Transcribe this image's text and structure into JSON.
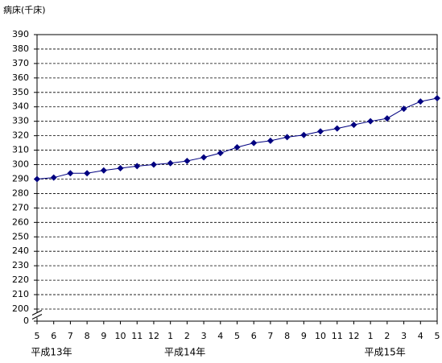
{
  "chart_data": {
    "type": "line",
    "y_axis_title": "病床(千床)",
    "categories": [
      "5",
      "6",
      "7",
      "8",
      "9",
      "10",
      "11",
      "12",
      "1",
      "2",
      "3",
      "4",
      "5",
      "6",
      "7",
      "8",
      "9",
      "10",
      "11",
      "12",
      "1",
      "2",
      "3",
      "4",
      "5"
    ],
    "year_labels": [
      "平成13年",
      null,
      null,
      null,
      null,
      null,
      null,
      null,
      "平成14年",
      null,
      null,
      null,
      null,
      null,
      null,
      null,
      null,
      null,
      null,
      null,
      "平成15年",
      null,
      null,
      null,
      null
    ],
    "series": [
      {
        "color": "#000080",
        "values": [
          290,
          291,
          294,
          294,
          296,
          297.5,
          299,
          300,
          301,
          302.5,
          305,
          308,
          312,
          315,
          316.5,
          319,
          320.5,
          323,
          325,
          327.5,
          330,
          332,
          338.7,
          343.7,
          346
        ]
      }
    ],
    "ylim": [
      0,
      390
    ],
    "axis_break": [
      0,
      200
    ],
    "yticks": [
      0,
      200,
      210,
      220,
      230,
      240,
      250,
      260,
      270,
      280,
      290,
      300,
      310,
      320,
      330,
      340,
      350,
      360,
      370,
      380,
      390
    ],
    "grid": true
  }
}
